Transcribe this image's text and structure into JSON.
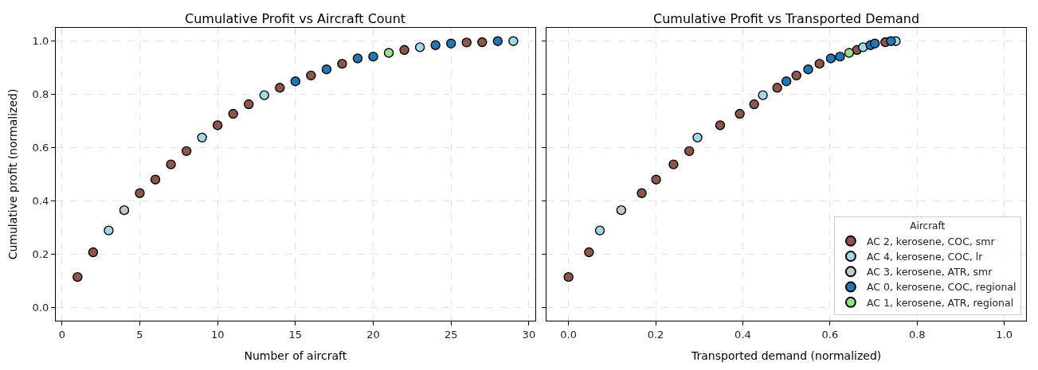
{
  "chart_data": [
    {
      "type": "scatter",
      "title": "Cumulative Profit vs Aircraft Count",
      "xlabel": "Number of aircraft",
      "ylabel": "Cumulative profit (normalized)",
      "xlim": [
        -0.4,
        30.4
      ],
      "xticks": [
        0,
        5,
        10,
        15,
        20,
        25,
        30
      ],
      "ylim": [
        -0.05,
        1.05
      ],
      "yticks": [
        {
          "value": 0,
          "label": "0.0"
        },
        {
          "value": 0.2,
          "label": "0.2"
        },
        {
          "value": 0.4,
          "label": "0.4"
        },
        {
          "value": 0.6,
          "label": "0.6"
        },
        {
          "value": 0.8,
          "label": "0.8"
        },
        {
          "value": 1,
          "label": "1.0"
        }
      ],
      "grid": true,
      "marker": "circle",
      "series": [
        {
          "color": "#8c564b",
          "x": [
            1,
            2,
            5,
            6,
            7,
            8,
            10,
            11,
            12,
            14,
            16,
            18,
            22,
            26,
            27
          ],
          "values": [
            0.114,
            0.207,
            0.429,
            0.48,
            0.537,
            0.587,
            0.684,
            0.727,
            0.763,
            0.825,
            0.871,
            0.915,
            0.967,
            0.995,
            0.996
          ]
        },
        {
          "color": "#9edae5",
          "x": [
            3,
            9,
            13,
            23,
            29
          ],
          "values": [
            0.289,
            0.638,
            0.797,
            0.977,
            1.0
          ]
        },
        {
          "color": "#c7c7c7",
          "x": [
            4
          ],
          "values": [
            0.365
          ]
        },
        {
          "color": "#1f77b4",
          "x": [
            15,
            17,
            19,
            20,
            24,
            25,
            28
          ],
          "values": [
            0.849,
            0.894,
            0.935,
            0.942,
            0.985,
            0.991,
            1.0
          ]
        },
        {
          "color": "#98df8a",
          "x": [
            21
          ],
          "values": [
            0.956
          ]
        }
      ]
    },
    {
      "type": "scatter",
      "title": "Cumulative Profit vs Transported Demand",
      "xlabel": "Transported demand (normalized)",
      "xlim": [
        -0.05,
        1.05
      ],
      "xticks": [
        {
          "value": 0,
          "label": "0.0"
        },
        {
          "value": 0.2,
          "label": "0.2"
        },
        {
          "value": 0.4,
          "label": "0.4"
        },
        {
          "value": 0.6,
          "label": "0.6"
        },
        {
          "value": 0.8,
          "label": "0.8"
        },
        {
          "value": 1,
          "label": "1.0"
        }
      ],
      "ylim": [
        -0.05,
        1.05
      ],
      "yticks": [
        0,
        0.2,
        0.4,
        0.6,
        0.8,
        1
      ],
      "tick_labels": "x",
      "grid": true,
      "marker": "circle",
      "legend": "bottom right",
      "legend_title": "Aircraft",
      "series": [
        {
          "name": "AC 2, kerosene, COC, smr",
          "color": "#8c564b",
          "x": [
            0.0,
            0.047,
            0.168,
            0.201,
            0.241,
            0.277,
            0.348,
            0.393,
            0.426,
            0.479,
            0.523,
            0.576,
            0.662,
            0.713,
            0.727
          ],
          "values": [
            0.114,
            0.207,
            0.429,
            0.48,
            0.537,
            0.587,
            0.684,
            0.727,
            0.763,
            0.825,
            0.871,
            0.915,
            0.967,
            null,
            0.996
          ]
        },
        {
          "name": "AC 4, kerosene, COC, lr",
          "color": "#9edae5",
          "x": [
            0.072,
            0.296,
            0.446,
            0.676,
            0.751
          ],
          "values": [
            0.289,
            0.638,
            0.797,
            0.977,
            1.0
          ]
        },
        {
          "name": "AC 3, kerosene, ATR, smr",
          "color": "#c7c7c7",
          "x": [
            0.121
          ],
          "values": [
            0.365
          ]
        },
        {
          "name": "AC 0, kerosene, COC, regional",
          "color": "#1f77b4",
          "x": [
            0.5,
            0.55,
            0.602,
            0.623,
            0.693,
            0.703,
            0.74
          ],
          "values": [
            0.849,
            0.894,
            0.935,
            0.942,
            0.985,
            0.991,
            1.0
          ]
        },
        {
          "name": "AC 1, kerosene, ATR, regional",
          "color": "#98df8a",
          "x": [
            0.644
          ],
          "values": [
            0.956
          ]
        }
      ]
    }
  ]
}
